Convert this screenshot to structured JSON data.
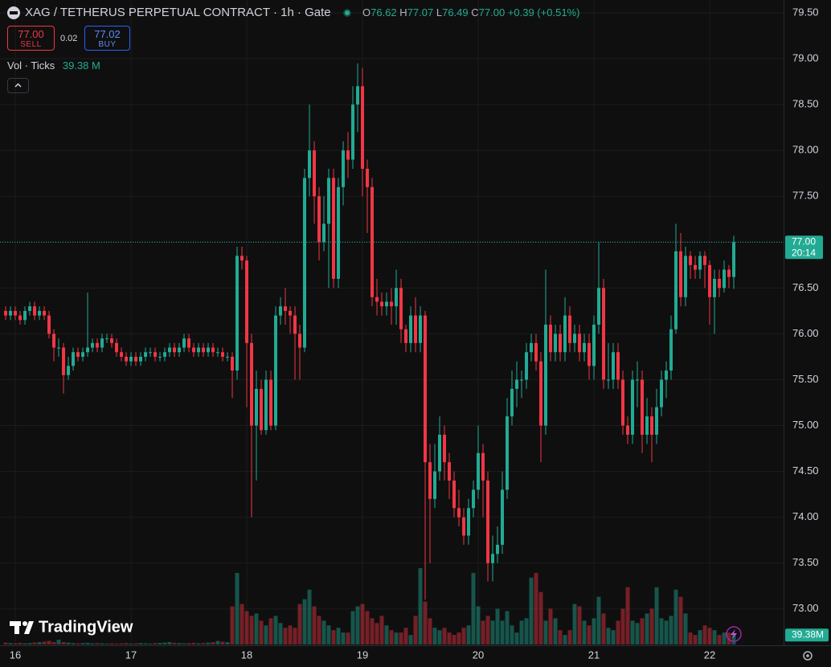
{
  "header": {
    "title": "XAG / TETHERUS PERPETUAL CONTRACT · 1h · Gate",
    "o_label": "O",
    "o_value": "76.62",
    "h_label": "H",
    "h_value": "77.07",
    "l_label": "L",
    "l_value": "76.49",
    "c_label": "C",
    "c_value": "77.00",
    "change": "+0.39 (+0.51%)",
    "sell_price": "77.00",
    "sell_label": "SELL",
    "spread": "0.02",
    "buy_price": "77.02",
    "buy_label": "BUY",
    "volume_legend": "Vol · Ticks",
    "volume_legend_value": "39.38 M",
    "last_price": "77.00",
    "countdown": "20:14",
    "logo": "TradingView"
  },
  "chart_data": {
    "type": "candlestick",
    "x": [
      -2,
      -1,
      0,
      1,
      2,
      3,
      4,
      5,
      6,
      7,
      8,
      9,
      10,
      11,
      12,
      13,
      14,
      15,
      16,
      17,
      18,
      19,
      20,
      21,
      22,
      23,
      24,
      25,
      26,
      27,
      28,
      29,
      30,
      31,
      32,
      33,
      34,
      35,
      36,
      37,
      38,
      39,
      40,
      41,
      42,
      43,
      44,
      45,
      46,
      47,
      48,
      49,
      50,
      51,
      52,
      53,
      54,
      55,
      56,
      57,
      58,
      59,
      60,
      61,
      62,
      63,
      64,
      65,
      66,
      67,
      68,
      69,
      70,
      71,
      72,
      73,
      74,
      75,
      76,
      77,
      78,
      79,
      80,
      81,
      82,
      83,
      84,
      85,
      86,
      87,
      88,
      89,
      90,
      91,
      92,
      93,
      94,
      95,
      96,
      97,
      98,
      99,
      100,
      101,
      102,
      103,
      104,
      105,
      106,
      107,
      108,
      109,
      110,
      111,
      112,
      113,
      114,
      115,
      116,
      117,
      118,
      119,
      120,
      121,
      122,
      123,
      124,
      125,
      126,
      127,
      128,
      129,
      130,
      131,
      132,
      133,
      134,
      135,
      136,
      137,
      138,
      139,
      140,
      141,
      142,
      143,
      144,
      145,
      146,
      147,
      148,
      149
    ],
    "open": [
      76.25,
      76.2,
      76.25,
      76.2,
      76.15,
      76.25,
      76.3,
      76.2,
      76.25,
      76.2,
      76.0,
      75.85,
      75.85,
      75.55,
      75.65,
      75.8,
      75.75,
      75.8,
      75.85,
      75.9,
      75.85,
      75.95,
      75.95,
      75.9,
      75.8,
      75.75,
      75.7,
      75.75,
      75.7,
      75.75,
      75.8,
      75.8,
      75.75,
      75.75,
      75.8,
      75.85,
      75.8,
      75.85,
      75.95,
      75.85,
      75.8,
      75.85,
      75.8,
      75.85,
      75.8,
      75.8,
      75.75,
      75.75,
      75.6,
      76.85,
      76.8,
      75.9,
      75.0,
      75.4,
      74.95,
      75.5,
      75.0,
      76.2,
      76.3,
      76.25,
      76.2,
      76.0,
      75.85,
      77.7,
      78.0,
      77.5,
      77.0,
      77.2,
      77.7,
      76.6,
      77.6,
      78.0,
      77.9,
      78.5,
      78.7,
      77.8,
      77.6,
      76.4,
      76.35,
      76.3,
      76.35,
      76.3,
      76.5,
      76.05,
      75.9,
      76.2,
      75.9,
      76.2,
      74.6,
      74.2,
      74.5,
      74.9,
      74.6,
      74.4,
      74.1,
      74.0,
      73.8,
      74.1,
      74.3,
      74.7,
      74.4,
      73.5,
      73.6,
      73.7,
      74.3,
      75.1,
      75.4,
      75.5,
      75.5,
      75.8,
      75.9,
      75.7,
      75.0,
      76.1,
      75.8,
      76.0,
      75.8,
      76.2,
      75.9,
      76.0,
      75.8,
      75.9,
      75.65,
      76.1,
      76.5,
      75.5,
      75.5,
      75.8,
      75.5,
      75.0,
      74.9,
      75.5,
      75.5,
      74.9,
      75.1,
      74.9,
      75.2,
      75.5,
      75.6,
      76.05,
      76.9,
      76.4,
      76.85,
      76.75,
      76.7,
      76.85,
      76.75,
      76.4,
      76.6,
      76.5,
      76.7,
      76.62
    ],
    "high": [
      76.3,
      76.3,
      76.3,
      76.25,
      76.3,
      76.35,
      76.35,
      76.3,
      76.3,
      76.25,
      76.05,
      75.95,
      75.9,
      75.75,
      75.85,
      75.85,
      75.85,
      76.45,
      75.95,
      75.95,
      76.0,
      76.0,
      76.0,
      75.95,
      75.85,
      75.8,
      75.8,
      75.8,
      75.8,
      75.85,
      75.85,
      75.85,
      75.8,
      75.85,
      75.9,
      75.9,
      75.9,
      76.0,
      76.0,
      75.9,
      75.9,
      75.9,
      75.9,
      75.9,
      75.85,
      75.85,
      75.8,
      75.8,
      76.95,
      76.95,
      76.85,
      76.0,
      75.6,
      75.5,
      75.6,
      75.6,
      76.3,
      76.4,
      76.5,
      76.3,
      76.3,
      76.1,
      77.8,
      78.5,
      78.1,
      77.6,
      77.5,
      77.8,
      77.8,
      77.7,
      78.1,
      78.2,
      78.7,
      78.95,
      78.9,
      77.9,
      77.7,
      76.6,
      76.45,
      76.45,
      76.5,
      76.7,
      76.6,
      76.1,
      76.3,
      76.4,
      76.3,
      76.25,
      74.8,
      74.8,
      75.1,
      75.0,
      74.7,
      74.5,
      74.3,
      74.1,
      74.2,
      74.4,
      75.0,
      74.8,
      74.5,
      73.8,
      73.9,
      74.5,
      75.3,
      75.6,
      75.7,
      75.6,
      75.9,
      76.0,
      76.0,
      75.8,
      76.7,
      76.2,
      76.1,
      76.1,
      76.4,
      76.3,
      76.1,
      76.1,
      76.0,
      76.0,
      76.2,
      77.0,
      76.6,
      75.9,
      75.9,
      75.9,
      75.6,
      75.1,
      75.6,
      75.7,
      75.6,
      75.3,
      75.2,
      75.4,
      75.6,
      75.7,
      76.2,
      77.2,
      77.1,
      76.95,
      76.9,
      76.85,
      76.9,
      76.9,
      76.8,
      76.7,
      76.7,
      76.8,
      76.75,
      77.07
    ],
    "low": [
      76.15,
      76.15,
      76.15,
      76.1,
      76.1,
      76.2,
      76.15,
      76.15,
      76.15,
      75.95,
      75.7,
      75.75,
      75.35,
      75.5,
      75.6,
      75.7,
      75.7,
      75.75,
      75.8,
      75.8,
      75.8,
      75.9,
      75.85,
      75.75,
      75.7,
      75.65,
      75.65,
      75.65,
      75.65,
      75.7,
      75.75,
      75.7,
      75.7,
      75.7,
      75.75,
      75.75,
      75.75,
      75.8,
      75.8,
      75.75,
      75.75,
      75.75,
      75.75,
      75.75,
      75.75,
      75.7,
      75.7,
      75.3,
      75.5,
      76.7,
      75.2,
      74.0,
      74.4,
      74.9,
      74.9,
      74.95,
      74.95,
      76.1,
      76.1,
      76.0,
      75.5,
      75.5,
      75.8,
      77.5,
      77.2,
      76.8,
      76.9,
      76.5,
      76.5,
      76.5,
      77.4,
      77.7,
      77.8,
      78.2,
      77.5,
      77.1,
      76.3,
      76.2,
      76.2,
      76.2,
      76.1,
      76.1,
      75.9,
      75.8,
      75.8,
      75.8,
      75.8,
      73.1,
      73.5,
      74.1,
      74.4,
      74.4,
      74.2,
      74.0,
      73.9,
      73.7,
      73.7,
      74.0,
      74.2,
      74.0,
      73.3,
      73.3,
      73.5,
      73.6,
      74.2,
      75.0,
      75.2,
      75.3,
      75.4,
      75.7,
      75.6,
      74.6,
      74.9,
      75.7,
      75.7,
      75.7,
      75.7,
      75.8,
      75.8,
      75.7,
      75.7,
      75.5,
      75.5,
      76.0,
      75.4,
      75.4,
      75.4,
      75.4,
      74.9,
      74.8,
      74.8,
      75.2,
      74.7,
      74.8,
      74.6,
      74.8,
      75.1,
      75.3,
      75.5,
      76.0,
      76.3,
      76.3,
      76.6,
      76.6,
      76.6,
      76.5,
      76.1,
      76.0,
      76.4,
      76.45,
      76.5,
      76.49
    ],
    "close": [
      76.2,
      76.25,
      76.2,
      76.15,
      76.25,
      76.3,
      76.2,
      76.25,
      76.2,
      76.0,
      75.85,
      75.85,
      75.55,
      75.65,
      75.8,
      75.75,
      75.8,
      75.85,
      75.9,
      75.85,
      75.95,
      75.95,
      75.9,
      75.8,
      75.75,
      75.7,
      75.75,
      75.7,
      75.75,
      75.8,
      75.8,
      75.75,
      75.75,
      75.8,
      75.85,
      75.8,
      75.85,
      75.95,
      75.85,
      75.8,
      75.85,
      75.8,
      75.85,
      75.8,
      75.8,
      75.75,
      75.75,
      75.6,
      76.85,
      76.8,
      75.9,
      75.0,
      75.4,
      74.95,
      75.5,
      75.0,
      76.2,
      76.3,
      76.25,
      76.2,
      76.0,
      75.85,
      77.7,
      78.0,
      77.5,
      77.0,
      77.2,
      77.7,
      76.6,
      77.6,
      78.0,
      77.9,
      78.5,
      78.7,
      77.8,
      77.6,
      76.4,
      76.35,
      76.3,
      76.35,
      76.3,
      76.5,
      76.05,
      75.9,
      76.2,
      75.9,
      76.2,
      74.6,
      74.2,
      74.5,
      74.9,
      74.6,
      74.4,
      74.1,
      74.0,
      73.8,
      74.1,
      74.3,
      74.7,
      74.4,
      73.5,
      73.6,
      73.7,
      74.3,
      75.1,
      75.4,
      75.5,
      75.5,
      75.8,
      75.9,
      75.7,
      75.0,
      76.1,
      75.8,
      76.0,
      75.8,
      76.2,
      75.9,
      76.0,
      75.8,
      75.9,
      75.65,
      76.1,
      76.5,
      75.5,
      75.5,
      75.8,
      75.5,
      75.0,
      74.9,
      75.5,
      75.5,
      74.9,
      75.1,
      74.9,
      75.2,
      75.5,
      75.6,
      76.05,
      76.9,
      76.4,
      76.85,
      76.75,
      76.7,
      76.85,
      76.75,
      76.4,
      76.6,
      76.5,
      76.7,
      76.62,
      77.0
    ],
    "volume": [
      8,
      6,
      5,
      7,
      5,
      6,
      8,
      10,
      12,
      15,
      10,
      20,
      10,
      8,
      6,
      5,
      6,
      7,
      5,
      6,
      5,
      4,
      5,
      4,
      5,
      6,
      4,
      5,
      6,
      5,
      4,
      6,
      7,
      8,
      10,
      7,
      6,
      5,
      6,
      7,
      5,
      6,
      8,
      10,
      15,
      12,
      10,
      160,
      300,
      170,
      140,
      120,
      130,
      100,
      80,
      110,
      120,
      90,
      70,
      80,
      70,
      170,
      190,
      230,
      160,
      120,
      100,
      80,
      60,
      70,
      50,
      50,
      140,
      160,
      170,
      140,
      110,
      90,
      120,
      80,
      60,
      50,
      50,
      70,
      40,
      120,
      320,
      180,
      110,
      70,
      60,
      70,
      50,
      40,
      50,
      70,
      80,
      300,
      160,
      100,
      120,
      100,
      150,
      100,
      140,
      80,
      50,
      100,
      110,
      280,
      300,
      220,
      100,
      150,
      110,
      60,
      40,
      60,
      170,
      160,
      100,
      80,
      110,
      200,
      130,
      70,
      60,
      100,
      150,
      240,
      100,
      90,
      110,
      130,
      150,
      240,
      110,
      100,
      120,
      230,
      200,
      130,
      50,
      40,
      60,
      80,
      70,
      60,
      40,
      50,
      50,
      39.38
    ],
    "volume_value_label": "39.38M",
    "up_color": "#22ab94",
    "down_color": "#f23645",
    "xlim": [
      -3.17,
      159.33
    ],
    "xticks": [
      {
        "value": 0,
        "label": "16"
      },
      {
        "value": 24,
        "label": "17"
      },
      {
        "value": 48,
        "label": "18"
      },
      {
        "value": 72,
        "label": "19"
      },
      {
        "value": 96,
        "label": "20"
      },
      {
        "value": 120,
        "label": "21"
      },
      {
        "value": 144,
        "label": "22"
      }
    ],
    "ylim": [
      72.63,
      79.5
    ],
    "yticks": [
      {
        "value": 73,
        "label": "73.00"
      },
      {
        "value": 73.5,
        "label": "73.50"
      },
      {
        "value": 74,
        "label": "74.00"
      },
      {
        "value": 74.5,
        "label": "74.50"
      },
      {
        "value": 75,
        "label": "75.00"
      },
      {
        "value": 75.5,
        "label": "75.50"
      },
      {
        "value": 76,
        "label": "76.00"
      },
      {
        "value": 76.5,
        "label": "76.50"
      },
      {
        "value": 77,
        "label": "77.00"
      },
      {
        "value": 77.5,
        "label": "77.50"
      },
      {
        "value": 78,
        "label": "78.00"
      },
      {
        "value": 78.5,
        "label": "78.50"
      },
      {
        "value": 79,
        "label": "79.00"
      },
      {
        "value": 79.5,
        "label": "79.50"
      }
    ],
    "grid": true
  }
}
